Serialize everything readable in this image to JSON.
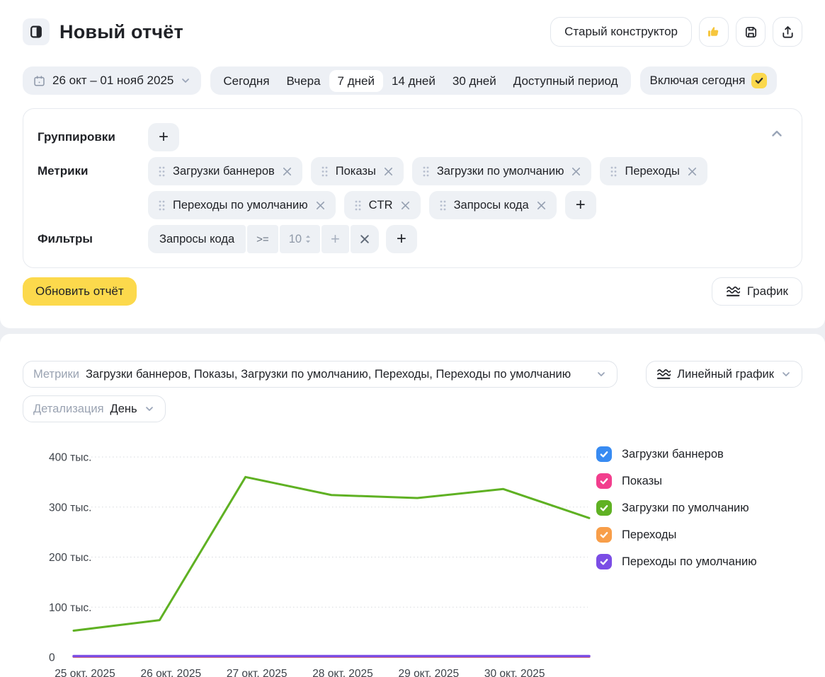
{
  "header": {
    "title": "Новый отчёт",
    "title_icon": "report-panel-icon",
    "old_constructor_label": "Старый конструктор",
    "icon_buttons": [
      "thumbs-up-icon",
      "save-icon",
      "share-icon"
    ]
  },
  "toolbar": {
    "date_range": "26 окт – 01 нояб 2025",
    "date_icon": "calendar-icon",
    "period_options": [
      "Сегодня",
      "Вчера",
      "7 дней",
      "14 дней",
      "30 дней",
      "Доступный период"
    ],
    "selected_period": "7 дней",
    "include_today_label": "Включая сегодня",
    "include_today_checked": true,
    "checkbox_color": "#fbd84d"
  },
  "builder": {
    "groupings_label": "Группировки",
    "metrics_label": "Метрики",
    "filters_label": "Фильтры",
    "metric_chips": [
      "Загрузки баннеров",
      "Показы",
      "Загрузки по умолчанию",
      "Переходы",
      "Переходы по умолчанию",
      "CTR",
      "Запросы кода"
    ],
    "filter": {
      "field": "Запросы кода",
      "operator": ">=",
      "value": "10"
    }
  },
  "actions": {
    "update_report_label": "Обновить отчёт",
    "update_button_color": "#fcd94c",
    "chart_label": "График",
    "chart_icon": "line-chart-icon"
  },
  "chart_controls": {
    "metrics_select_label": "Метрики",
    "metrics_select_value": "Загрузки баннеров, Показы, Загрузки по умолчанию, Переходы, Переходы по умолчанию",
    "chart_type_value": "Линейный график",
    "chart_type_icon": "line-chart-icon",
    "detail_label": "Детализация",
    "detail_value": "День"
  },
  "chart_data": {
    "type": "line",
    "num_points": 7,
    "x_tick_labels": [
      "25 окт. 2025",
      "26 окт. 2025",
      "27 окт. 2025",
      "28 окт. 2025",
      "29 окт. 2025",
      "30 окт. 2025"
    ],
    "series": [
      {
        "name": "Загрузки баннеров",
        "color": "#388bf2",
        "values": [
          900,
          900,
          900,
          900,
          900,
          900,
          900
        ],
        "checked": true
      },
      {
        "name": "Показы",
        "color": "#f23e8d",
        "values": [
          700,
          700,
          700,
          700,
          700,
          700,
          700
        ],
        "checked": true
      },
      {
        "name": "Загрузки по умолчанию",
        "color": "#5fb123",
        "values": [
          53000,
          74000,
          360000,
          324000,
          318000,
          336000,
          278000
        ],
        "checked": true
      },
      {
        "name": "Переходы",
        "color": "#f89e49",
        "values": [
          1100,
          1100,
          1100,
          1100,
          1100,
          1100,
          1100
        ],
        "checked": true
      },
      {
        "name": "Переходы по умолчанию",
        "color": "#7b4de5",
        "values": [
          2200,
          2200,
          2200,
          2100,
          2100,
          2200,
          2100
        ],
        "checked": true
      }
    ],
    "ylim": [
      0,
      400000
    ],
    "yticks": [
      {
        "value": 0,
        "label": "0"
      },
      {
        "value": 100000,
        "label": "100 тыс."
      },
      {
        "value": 200000,
        "label": "200 тыс."
      },
      {
        "value": 300000,
        "label": "300 тыс."
      },
      {
        "value": 400000,
        "label": "400 тыс."
      }
    ],
    "grid": "dotted-horizontal",
    "legend_position": "right"
  }
}
